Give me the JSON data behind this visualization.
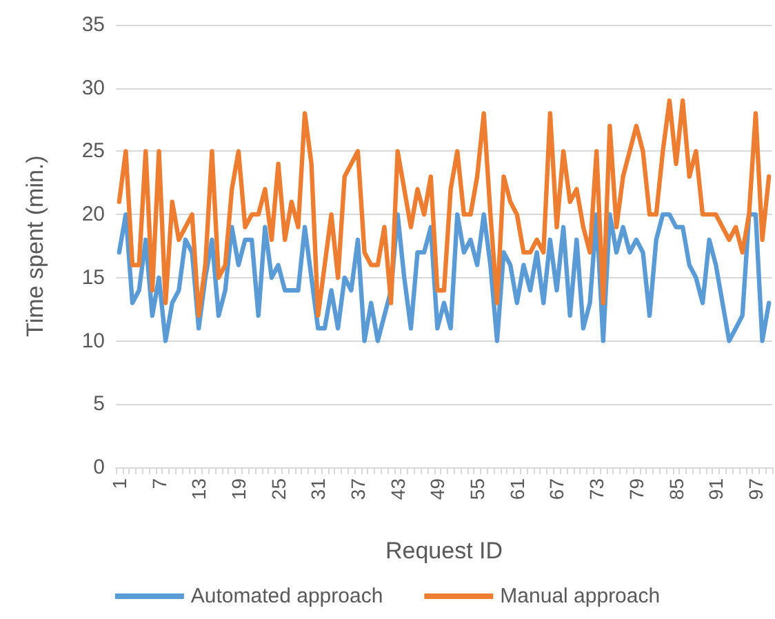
{
  "chart_data": {
    "type": "line",
    "xlabel": "Request ID",
    "ylabel": "Time spent (min.)",
    "categories": [
      "1",
      null,
      null,
      null,
      null,
      null,
      "7",
      null,
      null,
      null,
      null,
      null,
      "13",
      null,
      null,
      null,
      null,
      null,
      "19",
      null,
      null,
      null,
      null,
      null,
      "25",
      null,
      null,
      null,
      null,
      null,
      "31",
      null,
      null,
      null,
      null,
      null,
      "37",
      null,
      null,
      null,
      null,
      null,
      "43",
      null,
      null,
      null,
      null,
      null,
      "49",
      null,
      null,
      null,
      null,
      null,
      "55",
      null,
      null,
      null,
      null,
      null,
      "61",
      null,
      null,
      null,
      null,
      null,
      "67",
      null,
      null,
      null,
      null,
      null,
      "73",
      null,
      null,
      null,
      null,
      null,
      "79",
      null,
      null,
      null,
      null,
      null,
      "85",
      null,
      null,
      null,
      null,
      null,
      "91",
      null,
      null,
      null,
      null,
      null,
      "97",
      null,
      null
    ],
    "series": [
      {
        "name": "Automated approach",
        "color": "#5b9bd5",
        "values": [
          17,
          20,
          13,
          14,
          18,
          12,
          15,
          10,
          13,
          14,
          18,
          17,
          11,
          15,
          18,
          12,
          14,
          19,
          16,
          18,
          18,
          12,
          19,
          15,
          16,
          14,
          14,
          14,
          19,
          15,
          11,
          11,
          14,
          11,
          15,
          14,
          18,
          10,
          13,
          10,
          12,
          14,
          20,
          15,
          11,
          17,
          17,
          19,
          11,
          13,
          11,
          20,
          17,
          18,
          16,
          20,
          16,
          10,
          17,
          16,
          13,
          16,
          14,
          17,
          13,
          18,
          14,
          19,
          12,
          18,
          11,
          13,
          20,
          10,
          20,
          17,
          19,
          17,
          18,
          17,
          12,
          18,
          20,
          20,
          19,
          19,
          16,
          15,
          13,
          18,
          16,
          13,
          10,
          11,
          12,
          20,
          20,
          10,
          13
        ]
      },
      {
        "name": "Manual approach",
        "color": "#ed7d31",
        "values": [
          21,
          25,
          16,
          16,
          25,
          14,
          25,
          13,
          21,
          18,
          19,
          20,
          12,
          16,
          25,
          15,
          16,
          22,
          25,
          19,
          20,
          20,
          22,
          18,
          24,
          18,
          21,
          19,
          28,
          24,
          12,
          16,
          20,
          15,
          23,
          24,
          25,
          17,
          16,
          16,
          19,
          13,
          25,
          22,
          19,
          22,
          20,
          23,
          14,
          14,
          22,
          25,
          20,
          20,
          23,
          28,
          20,
          13,
          23,
          21,
          20,
          17,
          17,
          18,
          17,
          28,
          19,
          25,
          21,
          22,
          19,
          17,
          25,
          13,
          27,
          19,
          23,
          25,
          27,
          25,
          20,
          20,
          25,
          29,
          24,
          29,
          23,
          25,
          20,
          20,
          20,
          19,
          18,
          19,
          17,
          20,
          28,
          18,
          23
        ]
      }
    ],
    "ylim": [
      0,
      35
    ],
    "yticks": [
      0,
      5,
      10,
      15,
      20,
      25,
      30,
      35
    ],
    "grid": "y",
    "legend": "bottom",
    "marker": "none",
    "line_style": "solid"
  }
}
